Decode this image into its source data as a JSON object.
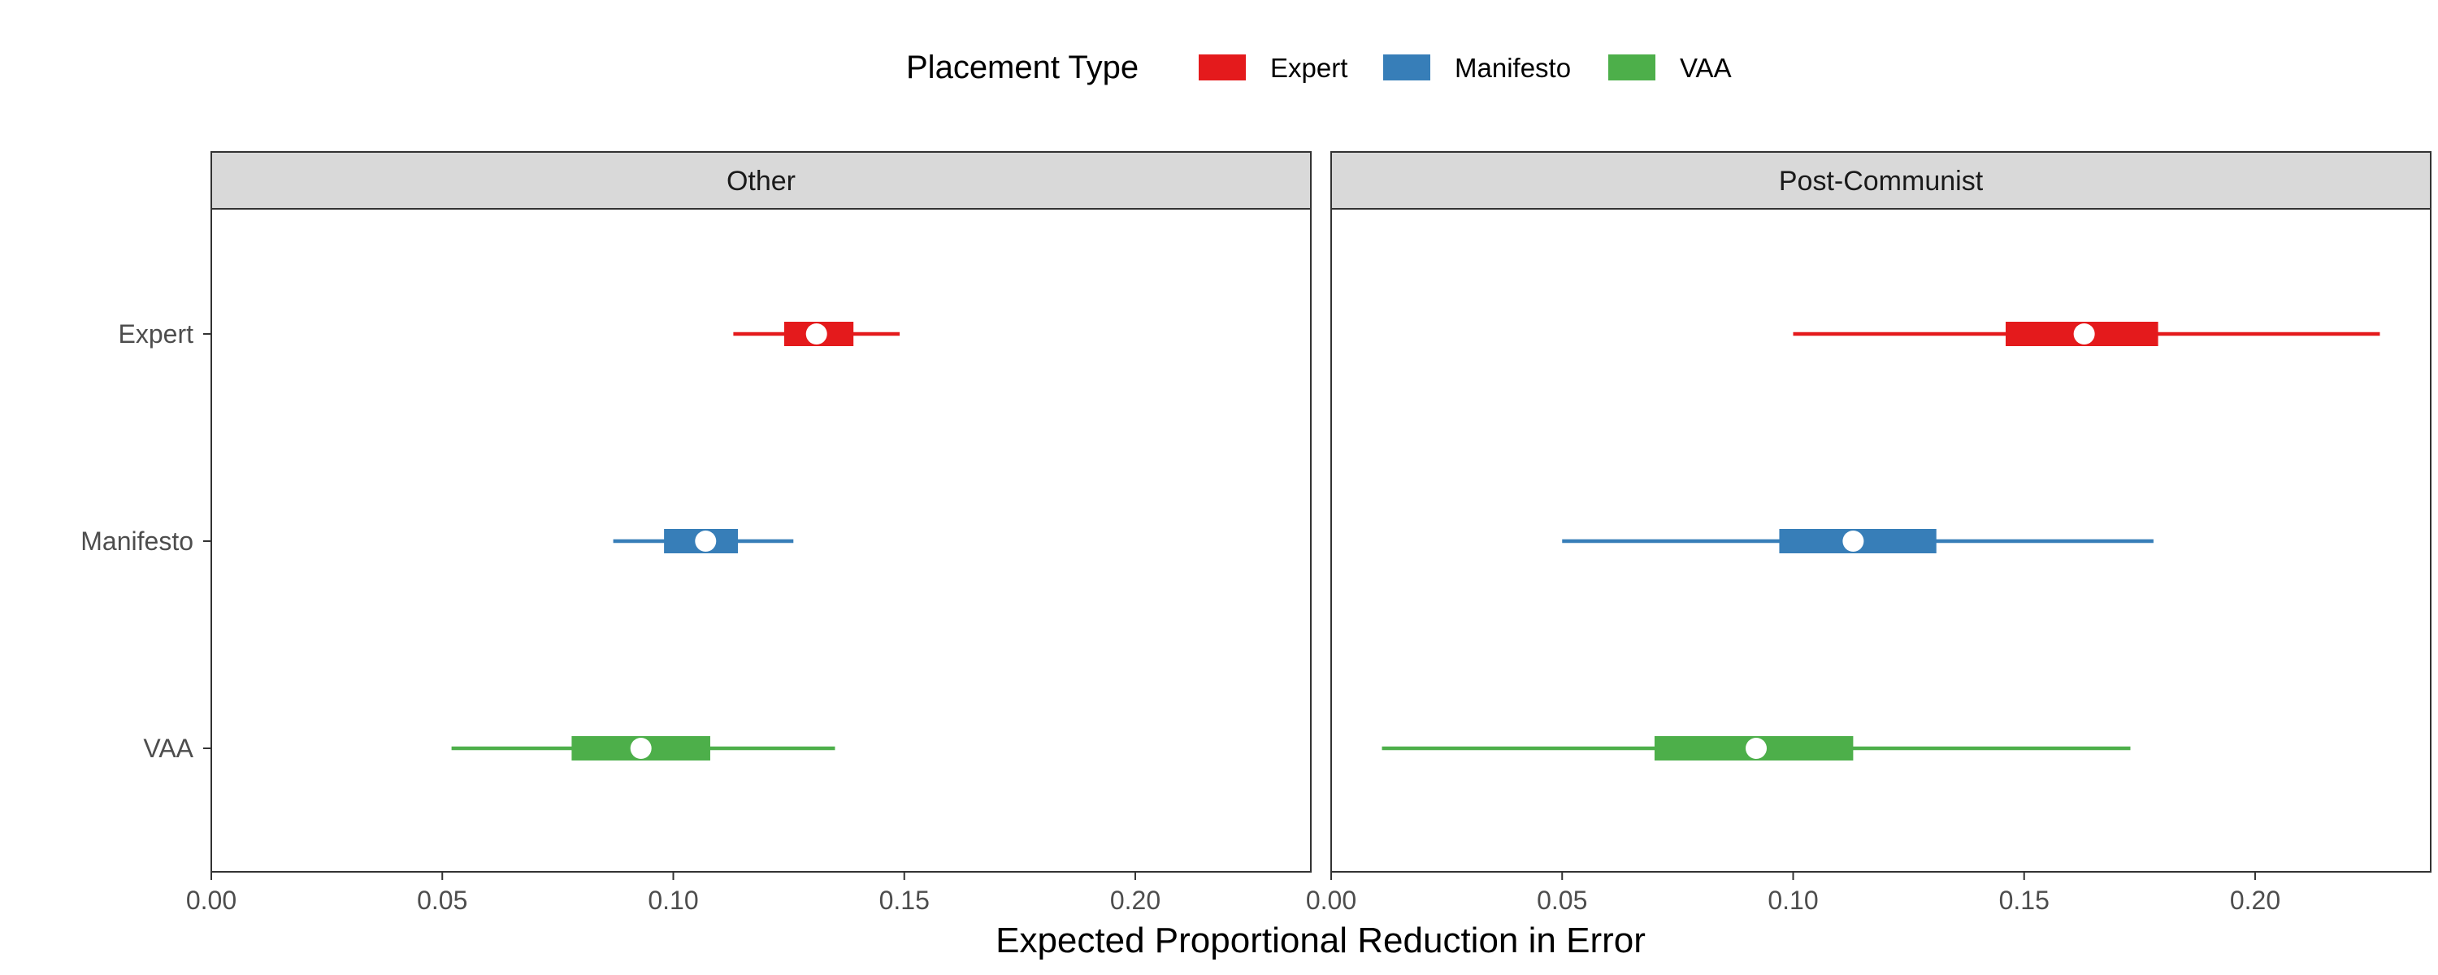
{
  "legend": {
    "title": "Placement Type",
    "items": [
      {
        "label": "Expert",
        "color": "#e41a1c"
      },
      {
        "label": "Manifesto",
        "color": "#377eb8"
      },
      {
        "label": "VAA",
        "color": "#4daf4a"
      }
    ]
  },
  "chart_data": {
    "type": "interval",
    "xlabel": "Expected Proportional Reduction in Error",
    "ylabel": "",
    "xlim": [
      0.0,
      0.238
    ],
    "xticks": [
      "0.00",
      "0.05",
      "0.10",
      "0.15",
      "0.20"
    ],
    "categories": [
      "Expert",
      "Manifesto",
      "VAA"
    ],
    "grid": false,
    "legend_position": "top",
    "facets": [
      {
        "name": "Other",
        "series": [
          {
            "name": "Expert",
            "color": "#e41a1c",
            "lower": 0.113,
            "inner_lower": 0.124,
            "point": 0.131,
            "inner_upper": 0.139,
            "upper": 0.149
          },
          {
            "name": "Manifesto",
            "color": "#377eb8",
            "lower": 0.087,
            "inner_lower": 0.098,
            "point": 0.107,
            "inner_upper": 0.114,
            "upper": 0.126
          },
          {
            "name": "VAA",
            "color": "#4daf4a",
            "lower": 0.052,
            "inner_lower": 0.078,
            "point": 0.093,
            "inner_upper": 0.108,
            "upper": 0.135
          }
        ]
      },
      {
        "name": "Post-Communist",
        "series": [
          {
            "name": "Expert",
            "color": "#e41a1c",
            "lower": 0.1,
            "inner_lower": 0.146,
            "point": 0.163,
            "inner_upper": 0.179,
            "upper": 0.227
          },
          {
            "name": "Manifesto",
            "color": "#377eb8",
            "lower": 0.05,
            "inner_lower": 0.097,
            "point": 0.113,
            "inner_upper": 0.131,
            "upper": 0.178
          },
          {
            "name": "VAA",
            "color": "#4daf4a",
            "lower": 0.011,
            "inner_lower": 0.07,
            "point": 0.092,
            "inner_upper": 0.113,
            "upper": 0.173
          }
        ]
      }
    ]
  }
}
